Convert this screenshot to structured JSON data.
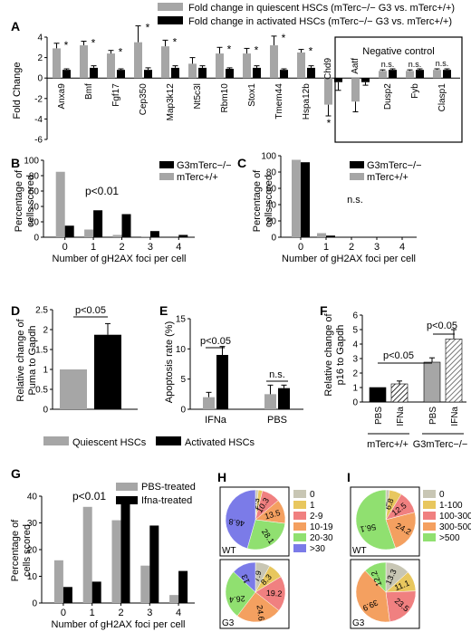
{
  "chart_data": [
    {
      "panel": "A",
      "type": "bar",
      "ylabel": "Fold Change",
      "ylim": [
        -6,
        4
      ],
      "yticks": [
        4,
        2,
        0,
        -2,
        -4,
        -6
      ],
      "series": [
        {
          "name": "Fold change in quiescent HSCs (mTerc−/− G3 vs. mTerc+/+)",
          "color": "#a6a6a6"
        },
        {
          "name": "Fold change in activated HSCs (mTerc−/− G3 vs. mTerc+/+)",
          "color": "#000000"
        }
      ],
      "categories": [
        "Anxa9",
        "Bmf",
        "Fgf17",
        "Cep350",
        "Map3k12",
        "Nt5c3l",
        "Rbm10",
        "Stox1",
        "Tmem44",
        "Hspa12b",
        "Chd9",
        "Aatf",
        "Dusp2",
        "Fyb",
        "Clasp1"
      ],
      "quiescent": [
        2.9,
        3.2,
        2.4,
        3.5,
        3.1,
        1.4,
        2.4,
        2.4,
        3.2,
        2.5,
        -2.6,
        -2.3,
        0.7,
        0.7,
        0.8
      ],
      "activated": [
        0.8,
        1.0,
        0.8,
        0.8,
        1.0,
        1.0,
        0.9,
        1.0,
        0.8,
        1.0,
        -0.4,
        -0.4,
        0.8,
        0.8,
        0.8
      ],
      "q_err": [
        0.5,
        0.4,
        0.3,
        1.6,
        0.6,
        0.6,
        0.6,
        0.5,
        0.9,
        0.3,
        1.1,
        1.0,
        0.1,
        0.1,
        0.1
      ],
      "a_err": [
        0.1,
        0.2,
        0.1,
        0.2,
        0.2,
        0.2,
        0.1,
        0.2,
        0.1,
        0.2,
        0.8,
        0.3,
        0.1,
        0.1,
        0.1
      ],
      "sig_markers": [
        "*",
        "*",
        "*",
        "*",
        "*",
        "",
        "*",
        "*",
        "*",
        "*",
        "*",
        "",
        "n.s.",
        "n.s.",
        "n.s."
      ],
      "neg_control_label": "Negative control"
    },
    {
      "panel": "B",
      "type": "bar",
      "ylabel": "Percentage of cells scored",
      "xlabel": "Number of gH2AX foci per cell",
      "categories": [
        "0",
        "1",
        "2",
        "3",
        "4"
      ],
      "ylim": [
        0,
        100
      ],
      "yticks": [
        0,
        20,
        40,
        60,
        80,
        100
      ],
      "annotation": "p<0.01",
      "series": [
        {
          "name": "G3mTerc−/−",
          "color": "#000000",
          "values": [
            15,
            35,
            30,
            8,
            3
          ]
        },
        {
          "name": "mTerc+/+",
          "color": "#a6a6a6",
          "values": [
            85,
            10,
            3,
            1,
            0
          ]
        }
      ]
    },
    {
      "panel": "C",
      "type": "bar",
      "ylabel": "Percentage of cells scored",
      "xlabel": "Number of gH2AX foci per cell",
      "categories": [
        "0",
        "1",
        "2",
        "3",
        "4"
      ],
      "ylim": [
        0,
        100
      ],
      "yticks": [
        0,
        20,
        40,
        60,
        80,
        100
      ],
      "annotation": "n.s.",
      "series": [
        {
          "name": "G3mTerc−/−",
          "color": "#000000",
          "values": [
            92,
            2,
            0,
            0,
            0
          ]
        },
        {
          "name": "mTerc+/+",
          "color": "#a6a6a6",
          "values": [
            95,
            5,
            0,
            0,
            0
          ]
        }
      ]
    },
    {
      "panel": "D",
      "type": "bar",
      "ylabel": "Relative change of Puma to Gapdh",
      "ylim": [
        0,
        2.5
      ],
      "yticks": [
        0,
        0.5,
        1,
        1.5,
        2,
        2.5
      ],
      "annotation": "p<0.05",
      "values": [
        1.0,
        1.87
      ],
      "errors": [
        0,
        0.28
      ],
      "colors": [
        "#a6a6a6",
        "#000000"
      ]
    },
    {
      "panel": "E",
      "type": "bar",
      "ylabel": "Apoptosis rate (%)",
      "categories": [
        "IFNa",
        "PBS"
      ],
      "ylim": [
        0,
        15
      ],
      "yticks": [
        0,
        5,
        10,
        15
      ],
      "annotations": [
        "p<0.05",
        "n.s."
      ],
      "grey": [
        2,
        2.5
      ],
      "black": [
        9,
        3.5
      ],
      "grey_err": [
        0.8,
        1.5
      ],
      "black_err": [
        1.4,
        0.5
      ]
    },
    {
      "panel": "F",
      "type": "bar",
      "ylabel": "Relative change of p16 to Gapdh",
      "ylim": [
        0,
        6
      ],
      "yticks": [
        0,
        1,
        2,
        3,
        4,
        5,
        6
      ],
      "annotations": [
        "p<0.05",
        "p<0.05"
      ],
      "bar_labels": [
        "PBS",
        "IFNa",
        "PBS",
        "IFNa"
      ],
      "values": [
        1.0,
        1.25,
        2.75,
        4.35
      ],
      "errors": [
        0,
        0.2,
        0.3,
        0.65
      ],
      "group_labels": [
        "mTerc+/+",
        "G3mTerc−/−"
      ]
    },
    {
      "panel": "G",
      "type": "bar",
      "ylabel": "Percentage of cells scored",
      "xlabel": "Number of gH2AX foci per cell",
      "categories": [
        "0",
        "1",
        "2",
        "3",
        "4"
      ],
      "ylim": [
        0,
        40
      ],
      "yticks": [
        0,
        10,
        20,
        30,
        40
      ],
      "annotation": "p<0.01",
      "series": [
        {
          "name": "PBS-treated",
          "color": "#a6a6a6",
          "values": [
            16,
            36,
            31,
            14,
            3
          ]
        },
        {
          "name": "Ifna-treated",
          "color": "#000000",
          "values": [
            6,
            8,
            38,
            29,
            12
          ]
        }
      ]
    },
    {
      "panel": "H",
      "type": "pie",
      "legend": [
        "0",
        "1",
        "2-9",
        "10-19",
        "20-30",
        ">30"
      ],
      "colors": [
        "#c8c6b4",
        "#e8c75e",
        "#f08080",
        "#f4a060",
        "#90e070",
        "#7b7be8"
      ],
      "charts": [
        {
          "label": "WT",
          "values": [
            1.6,
            2.3,
            10.3,
            13.5,
            28.1,
            46.8
          ]
        },
        {
          "label": "G3",
          "values": [
            7.9,
            8.3,
            19.2,
            24.6,
            26.4,
            13.0
          ]
        }
      ]
    },
    {
      "panel": "I",
      "type": "pie",
      "legend": [
        "0",
        "1-100",
        "100-300",
        "300-500",
        ">500"
      ],
      "colors": [
        "#c8c6b4",
        "#e8c75e",
        "#f08080",
        "#f4a060",
        "#90e070"
      ],
      "charts": [
        {
          "label": "WT",
          "values": [
            2.0,
            6.8,
            12.5,
            24.2,
            56.1
          ]
        },
        {
          "label": "G3",
          "values": [
            13.3,
            11.1,
            23.5,
            39.9,
            12.2
          ]
        }
      ]
    }
  ],
  "legends": {
    "D": [
      "Quiescent HSCs",
      "Activated HSCs"
    ]
  }
}
